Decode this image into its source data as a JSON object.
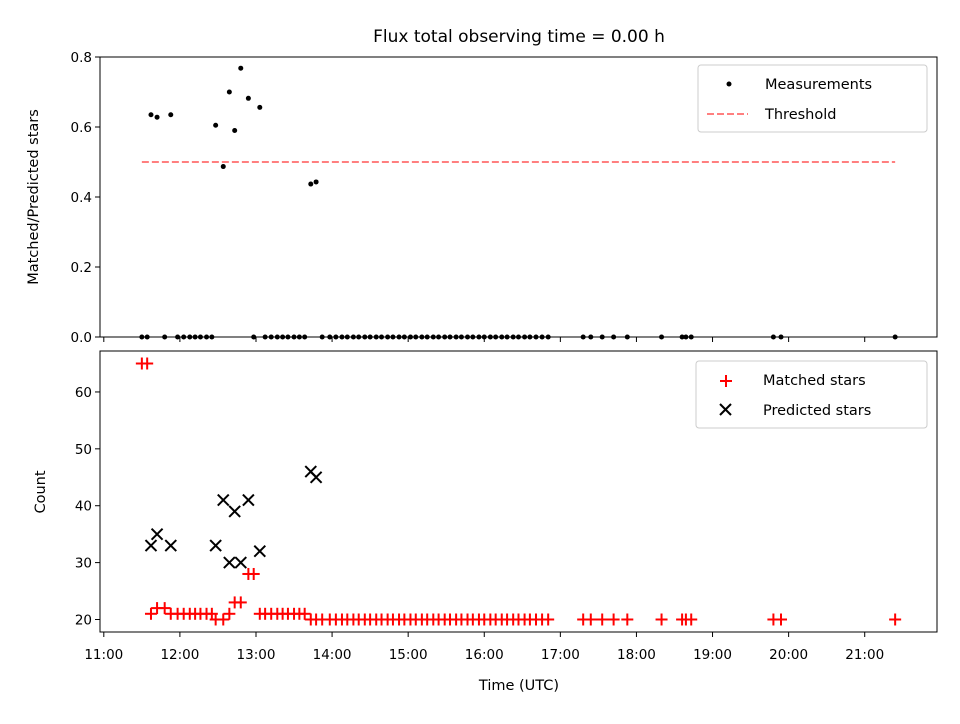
{
  "chart_data": [
    {
      "type": "scatter",
      "title": "Flux total observing time = 0.00 h",
      "xlabel": "",
      "ylabel": "Matched/Predicted stars",
      "xlim": [
        10.95,
        21.95
      ],
      "ylim": [
        0.0,
        0.8
      ],
      "yticks": [
        0.0,
        0.2,
        0.4,
        0.6,
        0.8
      ],
      "ytick_labels": [
        "0.0",
        "0.2",
        "0.4",
        "0.6",
        "0.8"
      ],
      "legend_position": "top-right",
      "series": [
        {
          "name": "Measurements",
          "marker": "dot",
          "color": "#000000",
          "points": [
            [
              11.62,
              0.635
            ],
            [
              11.7,
              0.628
            ],
            [
              11.88,
              0.635
            ],
            [
              12.47,
              0.605
            ],
            [
              12.57,
              0.487
            ],
            [
              12.65,
              0.7
            ],
            [
              12.72,
              0.59
            ],
            [
              12.8,
              0.768
            ],
            [
              12.9,
              0.682
            ],
            [
              13.05,
              0.656
            ],
            [
              13.72,
              0.437
            ],
            [
              13.79,
              0.443
            ],
            [
              11.5,
              0.0
            ],
            [
              11.57,
              0.0
            ],
            [
              11.8,
              0.0
            ],
            [
              11.97,
              0.0
            ],
            [
              12.05,
              0.0
            ],
            [
              12.13,
              0.0
            ],
            [
              12.2,
              0.0
            ],
            [
              12.27,
              0.0
            ],
            [
              12.35,
              0.0
            ],
            [
              12.42,
              0.0
            ],
            [
              12.97,
              0.0
            ],
            [
              13.12,
              0.0
            ],
            [
              13.2,
              0.0
            ],
            [
              13.28,
              0.0
            ],
            [
              13.35,
              0.0
            ],
            [
              13.42,
              0.0
            ],
            [
              13.5,
              0.0
            ],
            [
              13.57,
              0.0
            ],
            [
              13.64,
              0.0
            ],
            [
              13.87,
              0.0
            ],
            [
              13.97,
              0.0
            ],
            [
              14.05,
              0.0
            ],
            [
              14.13,
              0.0
            ],
            [
              14.2,
              0.0
            ],
            [
              14.28,
              0.0
            ],
            [
              14.35,
              0.0
            ],
            [
              14.43,
              0.0
            ],
            [
              14.5,
              0.0
            ],
            [
              14.58,
              0.0
            ],
            [
              14.65,
              0.0
            ],
            [
              14.73,
              0.0
            ],
            [
              14.8,
              0.0
            ],
            [
              14.88,
              0.0
            ],
            [
              14.95,
              0.0
            ],
            [
              15.03,
              0.0
            ],
            [
              15.1,
              0.0
            ],
            [
              15.18,
              0.0
            ],
            [
              15.25,
              0.0
            ],
            [
              15.33,
              0.0
            ],
            [
              15.4,
              0.0
            ],
            [
              15.48,
              0.0
            ],
            [
              15.55,
              0.0
            ],
            [
              15.63,
              0.0
            ],
            [
              15.7,
              0.0
            ],
            [
              15.78,
              0.0
            ],
            [
              15.85,
              0.0
            ],
            [
              15.93,
              0.0
            ],
            [
              16.0,
              0.0
            ],
            [
              16.08,
              0.0
            ],
            [
              16.15,
              0.0
            ],
            [
              16.23,
              0.0
            ],
            [
              16.3,
              0.0
            ],
            [
              16.38,
              0.0
            ],
            [
              16.45,
              0.0
            ],
            [
              16.53,
              0.0
            ],
            [
              16.6,
              0.0
            ],
            [
              16.68,
              0.0
            ],
            [
              16.76,
              0.0
            ],
            [
              16.84,
              0.0
            ],
            [
              17.3,
              0.0
            ],
            [
              17.4,
              0.0
            ],
            [
              17.55,
              0.0
            ],
            [
              17.7,
              0.0
            ],
            [
              17.88,
              0.0
            ],
            [
              18.33,
              0.0
            ],
            [
              18.6,
              0.0
            ],
            [
              18.65,
              0.0
            ],
            [
              18.72,
              0.0
            ],
            [
              19.8,
              0.0
            ],
            [
              19.9,
              0.0
            ],
            [
              21.4,
              0.0
            ]
          ]
        },
        {
          "name": "Threshold",
          "type": "line",
          "style": "dashed",
          "color": "#ff7f7f",
          "points": [
            [
              11.5,
              0.5
            ],
            [
              21.4,
              0.5
            ]
          ]
        }
      ]
    },
    {
      "type": "scatter",
      "title": "",
      "xlabel": "Time (UTC)",
      "ylabel": "Count",
      "xlim": [
        10.95,
        21.95
      ],
      "ylim": [
        17.8,
        67.2
      ],
      "yticks": [
        20,
        30,
        40,
        50,
        60
      ],
      "ytick_labels": [
        "20",
        "30",
        "40",
        "50",
        "60"
      ],
      "xticks": [
        11,
        12,
        13,
        14,
        15,
        16,
        17,
        18,
        19,
        20,
        21
      ],
      "xtick_labels": [
        "11:00",
        "12:00",
        "13:00",
        "14:00",
        "15:00",
        "16:00",
        "17:00",
        "18:00",
        "19:00",
        "20:00",
        "21:00"
      ],
      "legend_position": "top-right",
      "series": [
        {
          "name": "Matched stars",
          "marker": "plus",
          "color": "#ff0000",
          "points": [
            [
              11.5,
              65
            ],
            [
              11.57,
              65
            ],
            [
              11.62,
              21
            ],
            [
              11.7,
              22
            ],
            [
              11.8,
              22
            ],
            [
              11.88,
              21
            ],
            [
              11.97,
              21
            ],
            [
              12.05,
              21
            ],
            [
              12.13,
              21
            ],
            [
              12.2,
              21
            ],
            [
              12.27,
              21
            ],
            [
              12.35,
              21
            ],
            [
              12.42,
              21
            ],
            [
              12.47,
              20
            ],
            [
              12.57,
              20
            ],
            [
              12.65,
              21
            ],
            [
              12.72,
              23
            ],
            [
              12.8,
              23
            ],
            [
              12.9,
              28
            ],
            [
              12.97,
              28
            ],
            [
              13.05,
              21
            ],
            [
              13.12,
              21
            ],
            [
              13.2,
              21
            ],
            [
              13.28,
              21
            ],
            [
              13.35,
              21
            ],
            [
              13.42,
              21
            ],
            [
              13.5,
              21
            ],
            [
              13.57,
              21
            ],
            [
              13.64,
              21
            ],
            [
              13.72,
              20
            ],
            [
              13.79,
              20
            ],
            [
              13.87,
              20
            ],
            [
              13.97,
              20
            ],
            [
              14.05,
              20
            ],
            [
              14.13,
              20
            ],
            [
              14.2,
              20
            ],
            [
              14.28,
              20
            ],
            [
              14.35,
              20
            ],
            [
              14.43,
              20
            ],
            [
              14.5,
              20
            ],
            [
              14.58,
              20
            ],
            [
              14.65,
              20
            ],
            [
              14.73,
              20
            ],
            [
              14.8,
              20
            ],
            [
              14.88,
              20
            ],
            [
              14.95,
              20
            ],
            [
              15.03,
              20
            ],
            [
              15.1,
              20
            ],
            [
              15.18,
              20
            ],
            [
              15.25,
              20
            ],
            [
              15.33,
              20
            ],
            [
              15.4,
              20
            ],
            [
              15.48,
              20
            ],
            [
              15.55,
              20
            ],
            [
              15.63,
              20
            ],
            [
              15.7,
              20
            ],
            [
              15.78,
              20
            ],
            [
              15.85,
              20
            ],
            [
              15.93,
              20
            ],
            [
              16.0,
              20
            ],
            [
              16.08,
              20
            ],
            [
              16.15,
              20
            ],
            [
              16.23,
              20
            ],
            [
              16.3,
              20
            ],
            [
              16.38,
              20
            ],
            [
              16.45,
              20
            ],
            [
              16.53,
              20
            ],
            [
              16.6,
              20
            ],
            [
              16.68,
              20
            ],
            [
              16.76,
              20
            ],
            [
              16.84,
              20
            ],
            [
              17.3,
              20
            ],
            [
              17.4,
              20
            ],
            [
              17.55,
              20
            ],
            [
              17.7,
              20
            ],
            [
              17.88,
              20
            ],
            [
              18.33,
              20
            ],
            [
              18.6,
              20
            ],
            [
              18.65,
              20
            ],
            [
              18.72,
              20
            ],
            [
              19.8,
              20
            ],
            [
              19.9,
              20
            ],
            [
              21.4,
              20
            ]
          ]
        },
        {
          "name": "Predicted stars",
          "marker": "x",
          "color": "#000000",
          "points": [
            [
              11.62,
              33
            ],
            [
              11.7,
              35
            ],
            [
              11.88,
              33
            ],
            [
              12.47,
              33
            ],
            [
              12.57,
              41
            ],
            [
              12.65,
              30
            ],
            [
              12.72,
              39
            ],
            [
              12.8,
              30
            ],
            [
              12.9,
              41
            ],
            [
              13.05,
              32
            ],
            [
              13.72,
              46
            ],
            [
              13.79,
              45
            ]
          ]
        }
      ]
    }
  ]
}
